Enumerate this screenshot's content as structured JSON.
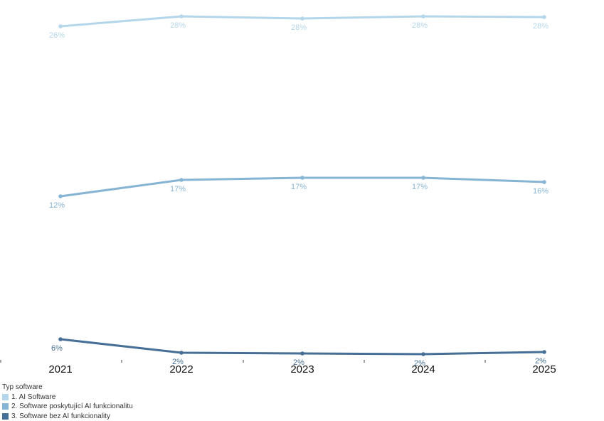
{
  "chart_data": {
    "type": "line",
    "categories": [
      "2021",
      "2022",
      "2023",
      "2024",
      "2025"
    ],
    "legend": {
      "title": "Typ software",
      "placement": "bottom-left"
    },
    "series": [
      {
        "name": "1. AI Software",
        "color": "#b4d6ea",
        "values": [
          26,
          28,
          28,
          28,
          28
        ],
        "labels": [
          "26%",
          "28%",
          "28%",
          "28%",
          "28%"
        ]
      },
      {
        "name": "2. Software poskytující AI funkcionalitu",
        "color": "#86b4d4",
        "values": [
          12,
          17,
          17,
          17,
          16
        ],
        "labels": [
          "12%",
          "17%",
          "17%",
          "17%",
          "16%"
        ]
      },
      {
        "name": "3. Software bez AI funkcionality",
        "color": "#466f97",
        "values": [
          6,
          2,
          2,
          2,
          2
        ],
        "labels": [
          "6%",
          "2%",
          "2%",
          "2%",
          "2%"
        ]
      }
    ],
    "grid": false
  }
}
